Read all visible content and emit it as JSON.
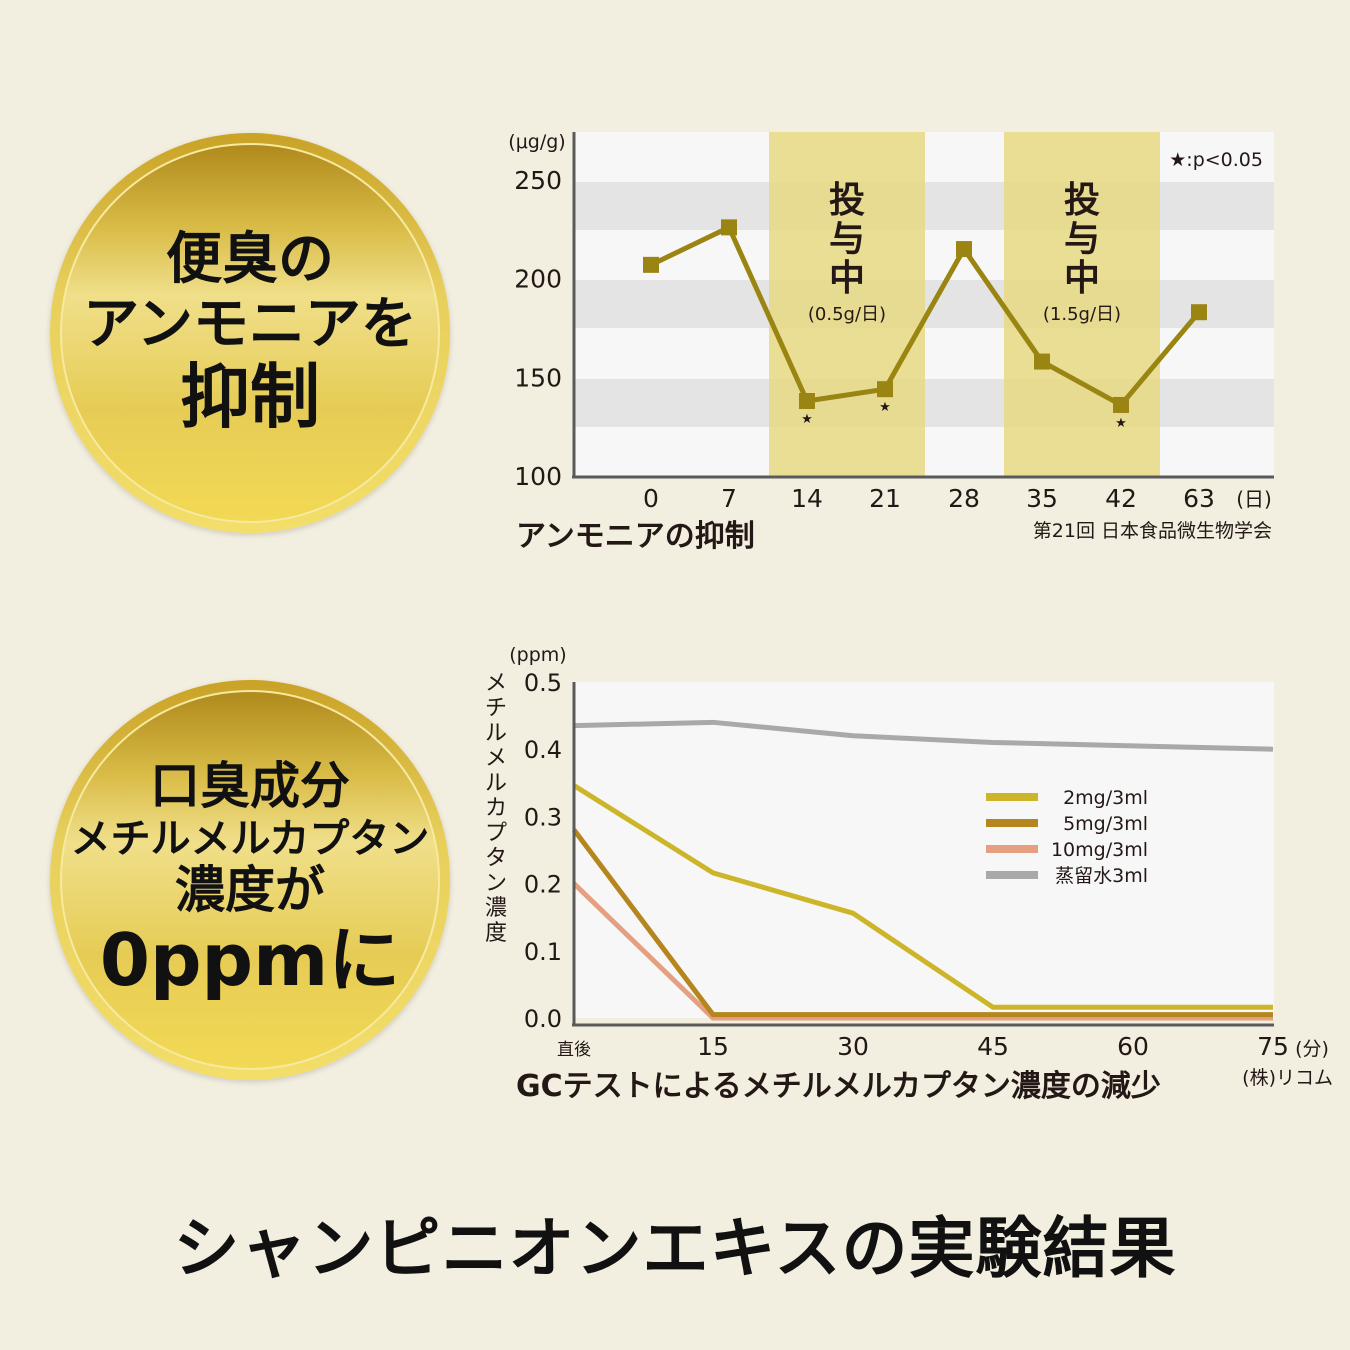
{
  "page_title": "シャンピニオンエキスの実験結果",
  "medals": [
    {
      "lines": [
        "便臭の",
        "アンモニアを",
        "抑制"
      ]
    },
    {
      "lines": [
        "口臭成分",
        "メチルメルカプタン",
        "濃度が",
        "0ppmに"
      ]
    }
  ],
  "colors": {
    "background": "#f2eee0",
    "gold": "#e6cc55",
    "ammonia_line": "#9a8412",
    "dosing_band": "#e8d984",
    "series_2mg": "#cdb52a",
    "series_5mg": "#b5851e",
    "series_10mg": "#e4a080",
    "series_water": "#a9a9a9"
  },
  "chart_data": [
    {
      "type": "line",
      "title": "アンモニアの抑制",
      "source": "第21回 日本食品微生物学会",
      "unit_label": "(μg/g)",
      "x_unit_label": "(日)",
      "significance_note": "★:p<0.05",
      "categories": [
        "0",
        "7",
        "14",
        "21",
        "28",
        "35",
        "42",
        "63"
      ],
      "series": [
        {
          "name": "アンモニア",
          "values": [
            207,
            226,
            138,
            144,
            215,
            158,
            136,
            183
          ]
        }
      ],
      "significant_points": [
        "14",
        "21",
        "42"
      ],
      "yticks": [
        "100",
        "150",
        "200",
        "250"
      ],
      "ylim": [
        100,
        250
      ],
      "bands": [
        {
          "from": "14",
          "to": "21",
          "label": "投与中",
          "sublabel": "(0.5g/日)"
        },
        {
          "from": "35",
          "to": "42",
          "label": "投与中",
          "sublabel": "(1.5g/日)"
        }
      ]
    },
    {
      "type": "line",
      "title": "GCテストによるメチルメルカプタン濃度の減少",
      "source": "(株)リコム",
      "unit_label": "(ppm)",
      "ylabel": "メチルメルカプタン濃度",
      "x_unit_label": "(分)",
      "categories": [
        "直後",
        "15",
        "30",
        "45",
        "60",
        "75"
      ],
      "yticks": [
        "0.0",
        "0.1",
        "0.2",
        "0.3",
        "0.4",
        "0.5"
      ],
      "ylim": [
        0,
        0.5
      ],
      "series": [
        {
          "name": "2mg/3ml",
          "values": [
            0.34,
            0.21,
            0.15,
            0.01,
            0.01,
            0.01
          ]
        },
        {
          "name": "5mg/3ml",
          "values": [
            0.28,
            0.005,
            0.005,
            0.005,
            0.005,
            0.005
          ]
        },
        {
          "name": "10mg/3ml",
          "values": [
            0.2,
            0.0,
            0.0,
            0.0,
            0.0,
            0.0
          ]
        },
        {
          "name": "蒸留水3ml",
          "values": [
            0.435,
            0.44,
            0.42,
            0.41,
            0.405,
            0.4
          ]
        }
      ],
      "legend_position": "upper-right-inside"
    }
  ]
}
